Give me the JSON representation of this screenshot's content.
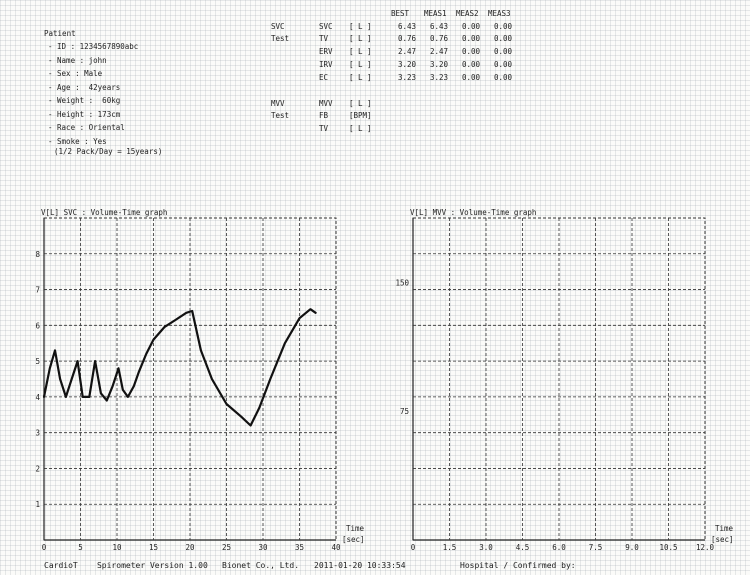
{
  "patient": {
    "title": "Patient",
    "lines": [
      "- ID : 1234567890abc",
      "- Name : john",
      "- Sex : Male",
      "- Age :  42years",
      "- Weight :  60kg",
      "- Height : 173cm",
      "- Race : Oriental",
      "- Smoke : Yes",
      "(1/2 Pack/Day = 15years)"
    ]
  },
  "svc_table": {
    "headers": [
      "BEST",
      "MEAS1",
      "MEAS2",
      "MEAS3"
    ],
    "group_label_1": "SVC",
    "group_label_2": "Test",
    "rows": [
      {
        "param": "SVC",
        "unit": "[ L ]",
        "values": [
          "6.43",
          "6.43",
          "0.00",
          "0.00"
        ]
      },
      {
        "param": "TV",
        "unit": "[ L ]",
        "values": [
          "0.76",
          "0.76",
          "0.00",
          "0.00"
        ]
      },
      {
        "param": "ERV",
        "unit": "[ L ]",
        "values": [
          "2.47",
          "2.47",
          "0.00",
          "0.00"
        ]
      },
      {
        "param": "IRV",
        "unit": "[ L ]",
        "values": [
          "3.20",
          "3.20",
          "0.00",
          "0.00"
        ]
      },
      {
        "param": "EC",
        "unit": "[ L ]",
        "values": [
          "3.23",
          "3.23",
          "0.00",
          "0.00"
        ]
      }
    ]
  },
  "mvv_table": {
    "group_label_1": "MVV",
    "group_label_2": "Test",
    "rows": [
      {
        "param": "MVV",
        "unit": "[ L ]"
      },
      {
        "param": "FB",
        "unit": "[BPM]"
      },
      {
        "param": "TV",
        "unit": "[ L ]"
      }
    ]
  },
  "footer": {
    "app": "CardioT    Spirometer Version 1.00",
    "company": "Bionet Co., Ltd.",
    "timestamp": "2011-01-20 10:33:54",
    "confirm": "Hospital / Confirmed by:"
  },
  "chart_data": [
    {
      "type": "line",
      "title": "SVC : Volume-Time graph",
      "ylabel": "V[L]",
      "xlabel": "Time",
      "xunit": "[sec]",
      "xlim": [
        0,
        40
      ],
      "ylim": [
        0,
        9
      ],
      "x_ticks": [
        "0",
        "5",
        "10",
        "15",
        "20",
        "25",
        "30",
        "35",
        "40"
      ],
      "y_ticks": [
        "1",
        "2",
        "3",
        "4",
        "5",
        "6",
        "7",
        "8"
      ],
      "grid": true,
      "x": [
        0,
        0.8,
        1.5,
        2.2,
        3.0,
        3.8,
        4.6,
        5.3,
        6.2,
        7.0,
        7.8,
        8.6,
        9.4,
        10.2,
        10.8,
        11.5,
        12.3,
        13.0,
        14.0,
        15.0,
        16.5,
        18.0,
        19.5,
        20.3,
        21.5,
        23.0,
        25.0,
        27.0,
        28.3,
        29.5,
        31.0,
        33.0,
        35.0,
        36.5,
        37.2
      ],
      "y": [
        4.0,
        4.8,
        5.3,
        4.5,
        4.0,
        4.5,
        5.0,
        4.0,
        4.0,
        5.0,
        4.1,
        3.9,
        4.3,
        4.8,
        4.2,
        4.0,
        4.3,
        4.7,
        5.2,
        5.6,
        5.95,
        6.15,
        6.35,
        6.4,
        5.3,
        4.5,
        3.8,
        3.45,
        3.2,
        3.7,
        4.5,
        5.5,
        6.2,
        6.45,
        6.35
      ]
    },
    {
      "type": "line",
      "title": "MVV : Volume-Time graph",
      "ylabel": "V[L]",
      "xlabel": "Time",
      "xunit": "[sec]",
      "xlim": [
        0,
        12
      ],
      "ylim": [
        0,
        187.5
      ],
      "x_ticks": [
        "0",
        "1.5",
        "3.0",
        "4.5",
        "6.0",
        "7.5",
        "9.0",
        "10.5",
        "12.0"
      ],
      "y_ticks": [
        "75",
        "150"
      ],
      "grid": true,
      "x": [],
      "y": []
    }
  ]
}
